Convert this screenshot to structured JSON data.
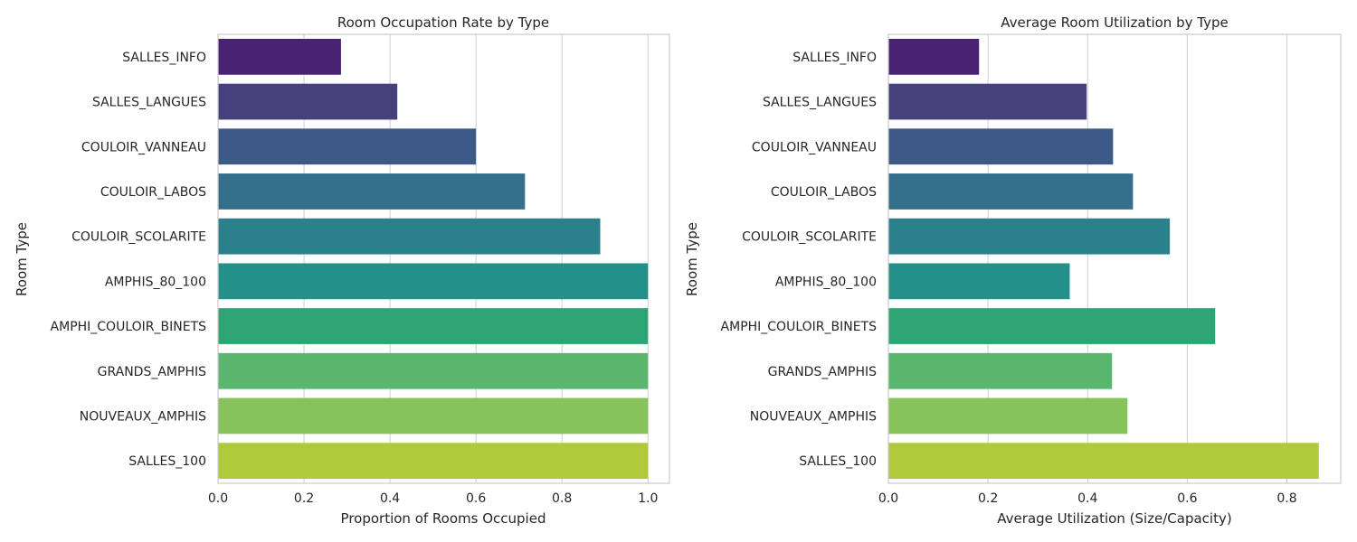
{
  "chart_data": [
    {
      "type": "bar",
      "orientation": "horizontal",
      "title": "Room Occupation Rate by Type",
      "xlabel": "Proportion of Rooms Occupied",
      "ylabel": "Room Type",
      "xlim": [
        0,
        1.05
      ],
      "xticks": [
        "0.0",
        "0.2",
        "0.4",
        "0.6",
        "0.8",
        "1.0"
      ],
      "categories": [
        "SALLES_INFO",
        "SALLES_LANGUES",
        "COULOIR_VANNEAU",
        "COULOIR_LABOS",
        "COULOIR_SCOLARITE",
        "AMPHIS_80_100",
        "AMPHI_COULOIR_BINETS",
        "GRANDS_AMPHIS",
        "NOUVEAUX_AMPHIS",
        "SALLES_100"
      ],
      "values": [
        0.286,
        0.417,
        0.6,
        0.714,
        0.889,
        1.0,
        1.0,
        1.0,
        1.0,
        1.0
      ],
      "grid": "x",
      "palette": "viridis"
    },
    {
      "type": "bar",
      "orientation": "horizontal",
      "title": "Average Room Utilization by Type",
      "xlabel": "Average Utilization (Size/Capacity)",
      "ylabel": "Room Type",
      "xlim": [
        0,
        0.908
      ],
      "xticks": [
        "0.0",
        "0.2",
        "0.4",
        "0.6",
        "0.8"
      ],
      "categories": [
        "SALLES_INFO",
        "SALLES_LANGUES",
        "COULOIR_VANNEAU",
        "COULOIR_LABOS",
        "COULOIR_SCOLARITE",
        "AMPHIS_80_100",
        "AMPHI_COULOIR_BINETS",
        "GRANDS_AMPHIS",
        "NOUVEAUX_AMPHIS",
        "SALLES_100"
      ],
      "values": [
        0.182,
        0.398,
        0.451,
        0.491,
        0.565,
        0.364,
        0.656,
        0.449,
        0.48,
        0.864
      ],
      "grid": "x",
      "palette": "viridis"
    }
  ],
  "colors": [
    "#482374",
    "#46407c",
    "#3d5a87",
    "#34708c",
    "#2a818c",
    "#23918a",
    "#2ea474",
    "#5ab56f",
    "#86c45b",
    "#b0c93b"
  ]
}
